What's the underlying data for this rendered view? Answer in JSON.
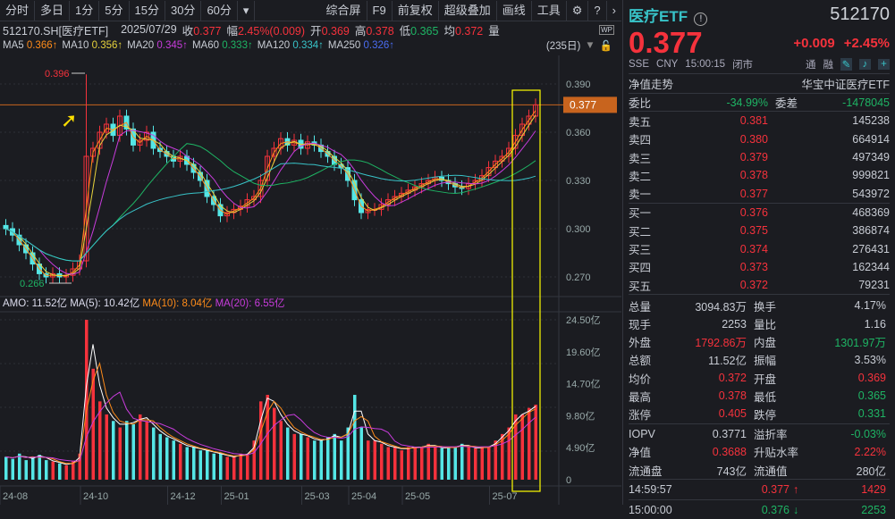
{
  "toolbar": {
    "periods": [
      "分时",
      "多日",
      "1分",
      "5分",
      "15分",
      "30分",
      "60分"
    ],
    "more": "▾",
    "right": [
      "综合屏",
      "F9",
      "前复权",
      "超级叠加",
      "画线",
      "工具"
    ],
    "settings_icon": "gear-icon",
    "help_icon": "help-icon",
    "next_icon": "chevron-right-icon"
  },
  "info": {
    "symbol": "512170.SH[医疗ETF]",
    "date": "2025/07/29",
    "close_label": "收",
    "close": "0.377",
    "chg_label": "幅",
    "chg": "2.45%(0.009)",
    "open_label": "开",
    "open": "0.369",
    "high_label": "高",
    "high": "0.378",
    "low_label": "低",
    "low": "0.365",
    "avg_label": "均",
    "avg": "0.372",
    "vol_label": "量",
    "days": "(235日)"
  },
  "ma": [
    {
      "label": "MA5",
      "value": "0.366↑",
      "color": "#ff8c1a"
    },
    {
      "label": "MA10",
      "value": "0.356↑",
      "color": "#e6d23c"
    },
    {
      "label": "MA20",
      "value": "0.345↑",
      "color": "#c83cdc"
    },
    {
      "label": "MA60",
      "value": "0.333↑",
      "color": "#1eb464"
    },
    {
      "label": "MA120",
      "value": "0.334↑",
      "color": "#38c3c8"
    },
    {
      "label": "MA250",
      "value": "0.326↑",
      "color": "#4a6cf0"
    }
  ],
  "amo": {
    "amo": "AMO: 11.52亿",
    "ma5": "MA(5): 10.42亿",
    "ma10": "MA(10): 8.04亿",
    "ma20": "MA(20): 6.55亿"
  },
  "chart_data": {
    "type": "candlestick",
    "price_ticks": [
      "0.390",
      "0.360",
      "0.330",
      "0.300",
      "0.270"
    ],
    "price_tick_values": [
      0.39,
      0.36,
      0.33,
      0.3,
      0.27
    ],
    "current_price_tag": "0.377",
    "max_label": "0.396",
    "min_label": "0.266",
    "volume_ticks": [
      "24.50亿",
      "19.60亿",
      "14.70亿",
      "9.80亿",
      "4.90亿",
      "0"
    ],
    "volume_tick_values": [
      24.5,
      19.6,
      14.7,
      9.8,
      4.9,
      0
    ],
    "date_labels": [
      "24-08",
      "24-10",
      "24-12",
      "25-01",
      "25-03",
      "25-04",
      "25-05",
      "25-07"
    ],
    "date_label_index": [
      0,
      12,
      25,
      33,
      45,
      52,
      60,
      73
    ],
    "closes": [
      0.3,
      0.296,
      0.29,
      0.285,
      0.278,
      0.272,
      0.27,
      0.272,
      0.27,
      0.271,
      0.275,
      0.28,
      0.345,
      0.35,
      0.36,
      0.365,
      0.358,
      0.37,
      0.362,
      0.352,
      0.355,
      0.36,
      0.35,
      0.348,
      0.345,
      0.342,
      0.345,
      0.34,
      0.335,
      0.33,
      0.32,
      0.315,
      0.308,
      0.31,
      0.312,
      0.314,
      0.318,
      0.32,
      0.33,
      0.345,
      0.35,
      0.356,
      0.352,
      0.355,
      0.35,
      0.354,
      0.352,
      0.348,
      0.345,
      0.34,
      0.338,
      0.33,
      0.318,
      0.31,
      0.312,
      0.312,
      0.315,
      0.318,
      0.32,
      0.322,
      0.324,
      0.326,
      0.328,
      0.33,
      0.332,
      0.33,
      0.328,
      0.326,
      0.325,
      0.328,
      0.33,
      0.333,
      0.338,
      0.342,
      0.345,
      0.35,
      0.358,
      0.365,
      0.37,
      0.377
    ],
    "volumes": [
      3.5,
      3.2,
      4,
      3,
      3.5,
      3.8,
      3,
      2.8,
      2.5,
      2.2,
      2.8,
      4,
      24.5,
      17,
      12,
      10,
      9,
      8,
      9,
      8.5,
      10,
      9,
      8,
      7,
      6.5,
      6,
      5.5,
      5,
      5,
      4.5,
      4.5,
      4,
      4,
      3.5,
      3.5,
      4,
      3.8,
      6,
      12,
      13,
      11,
      9,
      8,
      7,
      7,
      6.5,
      6,
      6,
      6.5,
      7,
      6,
      8,
      13,
      8,
      6,
      6,
      5.5,
      5,
      5,
      4.5,
      5,
      5,
      5,
      5.5,
      5,
      4.8,
      5,
      5,
      5.5,
      5,
      4.8,
      5,
      5,
      6,
      7,
      8,
      10,
      10,
      11,
      11.5
    ],
    "colors": {
      "up": "#f5323c",
      "down": "#54e6e6",
      "highlight": "#ffff00",
      "price_line": "#c8641e"
    }
  },
  "quote": {
    "name": "医疗ETF",
    "code": "512170",
    "price": "0.377",
    "change": "+0.009",
    "pct": "+2.45%",
    "market": "SSE",
    "currency": "CNY",
    "time": "15:00:15",
    "status": "闭市",
    "tong": "通",
    "rong": "融",
    "nav_label": "净值走势",
    "index_name": "华宝中证医疗ETF"
  },
  "order": {
    "wb_label": "委比",
    "wb": "-34.99%",
    "wc_label": "委差",
    "wc": "-1478045",
    "asks": [
      {
        "label": "卖五",
        "price": "0.381",
        "vol": "145238"
      },
      {
        "label": "卖四",
        "price": "0.380",
        "vol": "664914"
      },
      {
        "label": "卖三",
        "price": "0.379",
        "vol": "497349"
      },
      {
        "label": "卖二",
        "price": "0.378",
        "vol": "999821"
      },
      {
        "label": "卖一",
        "price": "0.377",
        "vol": "543972"
      }
    ],
    "bids": [
      {
        "label": "买一",
        "price": "0.376",
        "vol": "468369"
      },
      {
        "label": "买二",
        "price": "0.375",
        "vol": "386874"
      },
      {
        "label": "买三",
        "price": "0.374",
        "vol": "276431"
      },
      {
        "label": "买四",
        "price": "0.373",
        "vol": "162344"
      },
      {
        "label": "买五",
        "price": "0.372",
        "vol": "79231"
      }
    ]
  },
  "stats": [
    [
      "总量",
      "3094.83万",
      "",
      "换手",
      "4.17%",
      ""
    ],
    [
      "现手",
      "2253",
      "",
      "量比",
      "1.16",
      ""
    ],
    [
      "外盘",
      "1792.86万",
      "red",
      "内盘",
      "1301.97万",
      "green"
    ],
    [
      "总额",
      "11.52亿",
      "",
      "振幅",
      "3.53%",
      ""
    ],
    [
      "均价",
      "0.372",
      "red",
      "开盘",
      "0.369",
      "red"
    ],
    [
      "最高",
      "0.378",
      "red",
      "最低",
      "0.365",
      "green"
    ],
    [
      "涨停",
      "0.405",
      "red",
      "跌停",
      "0.331",
      "green"
    ]
  ],
  "etf": [
    [
      "IOPV",
      "0.3771",
      "",
      "溢折率",
      "-0.03%",
      "green"
    ],
    [
      "净值",
      "0.3688",
      "red",
      "升贴水率",
      "2.22%",
      "red"
    ],
    [
      "流通盘",
      "743亿",
      "",
      "流通值",
      "280亿",
      ""
    ]
  ],
  "ticks": [
    {
      "time": "14:59:57",
      "price": "0.377",
      "dir": "↑",
      "vol": "1429",
      "color": "red"
    },
    {
      "time": "15:00:00",
      "price": "0.376",
      "dir": "↓",
      "vol": "2253",
      "color": "green"
    }
  ]
}
